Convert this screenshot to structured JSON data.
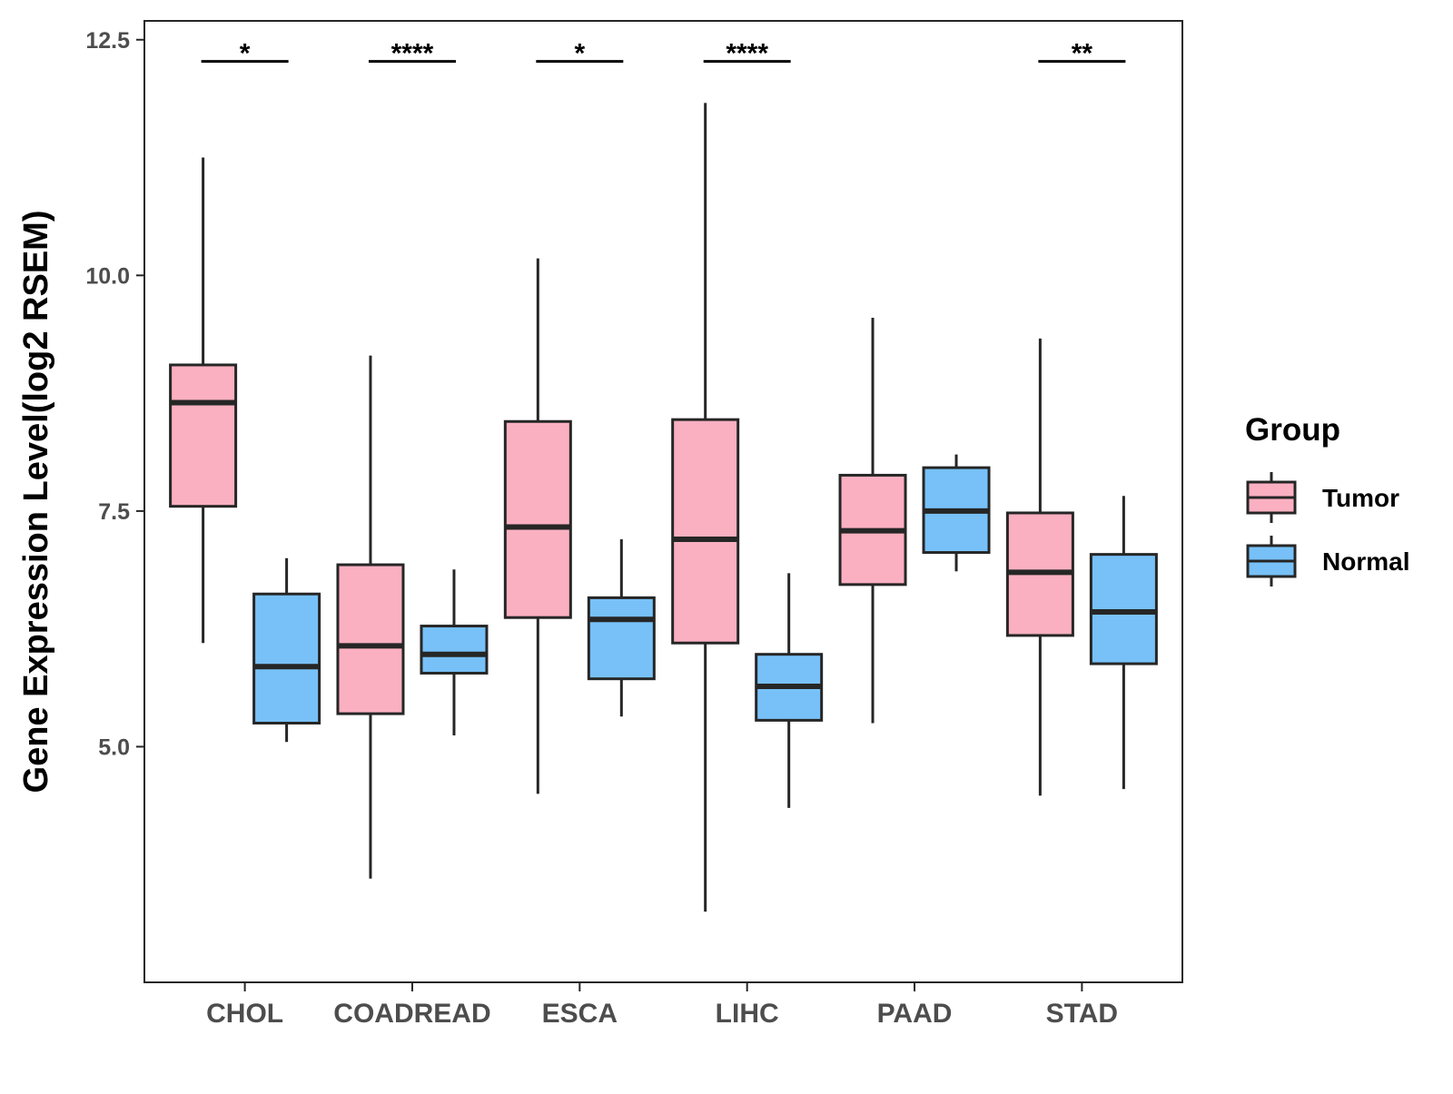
{
  "chart_data": {
    "type": "boxplot",
    "ylabel": "Gene Expression Level(log2 RSEM)",
    "xlabel": "",
    "ylim": [
      2.5,
      12.7
    ],
    "yticks": [
      5.0,
      7.5,
      10.0,
      12.5
    ],
    "ytick_labels": [
      "5.0",
      "7.5",
      "10.0",
      "12.5"
    ],
    "categories": [
      "CHOL",
      "COADREAD",
      "ESCA",
      "LIHC",
      "PAAD",
      "STAD"
    ],
    "legend": {
      "title": "Group",
      "position": "right",
      "entries": [
        {
          "name": "Tumor",
          "color": "#fbb0c1"
        },
        {
          "name": "Normal",
          "color": "#77c1f8"
        }
      ]
    },
    "series": [
      {
        "name": "Tumor",
        "color": "#fbb0c1",
        "boxes": [
          {
            "whisker_low": 6.1,
            "q1": 7.55,
            "median": 8.65,
            "q3": 9.05,
            "whisker_high": 11.25
          },
          {
            "whisker_low": 3.6,
            "q1": 5.35,
            "median": 6.07,
            "q3": 6.93,
            "whisker_high": 9.15
          },
          {
            "whisker_low": 4.5,
            "q1": 6.37,
            "median": 7.33,
            "q3": 8.45,
            "whisker_high": 10.18
          },
          {
            "whisker_low": 3.25,
            "q1": 6.1,
            "median": 7.2,
            "q3": 8.47,
            "whisker_high": 11.83
          },
          {
            "whisker_low": 5.25,
            "q1": 6.72,
            "median": 7.29,
            "q3": 7.88,
            "whisker_high": 9.55
          },
          {
            "whisker_low": 4.48,
            "q1": 6.18,
            "median": 6.85,
            "q3": 7.48,
            "whisker_high": 9.33
          }
        ]
      },
      {
        "name": "Normal",
        "color": "#77c1f8",
        "boxes": [
          {
            "whisker_low": 5.05,
            "q1": 5.25,
            "median": 5.85,
            "q3": 6.62,
            "whisker_high": 7.0
          },
          {
            "whisker_low": 5.12,
            "q1": 5.78,
            "median": 5.98,
            "q3": 6.28,
            "whisker_high": 6.88
          },
          {
            "whisker_low": 5.32,
            "q1": 5.72,
            "median": 6.35,
            "q3": 6.58,
            "whisker_high": 7.2
          },
          {
            "whisker_low": 4.35,
            "q1": 5.28,
            "median": 5.64,
            "q3": 5.98,
            "whisker_high": 6.84
          },
          {
            "whisker_low": 6.86,
            "q1": 7.06,
            "median": 7.5,
            "q3": 7.96,
            "whisker_high": 8.1
          },
          {
            "whisker_low": 4.55,
            "q1": 5.88,
            "median": 6.43,
            "q3": 7.04,
            "whisker_high": 7.66
          }
        ]
      }
    ],
    "significance": [
      {
        "category": "CHOL",
        "label": "*",
        "y": 12.27
      },
      {
        "category": "COADREAD",
        "label": "****",
        "y": 12.27
      },
      {
        "category": "ESCA",
        "label": "*",
        "y": 12.27
      },
      {
        "category": "LIHC",
        "label": "****",
        "y": 12.27
      },
      {
        "category": "STAD",
        "label": "**",
        "y": 12.27
      }
    ]
  }
}
